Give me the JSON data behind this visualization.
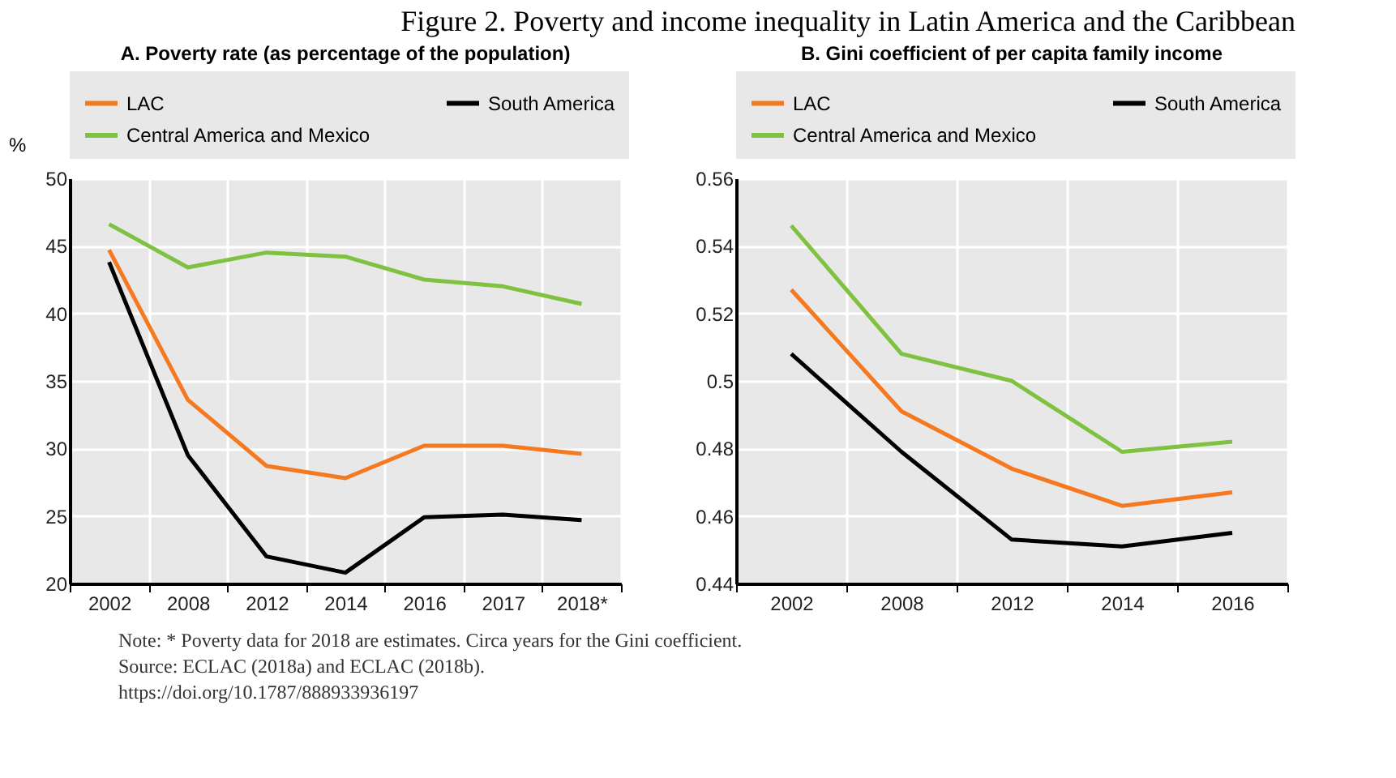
{
  "chart_data": [
    {
      "type": "line",
      "title": "A. Poverty rate  (as percentage of the population)",
      "ylabel": "%",
      "categories": [
        "2002",
        "2008",
        "2012",
        "2014",
        "2016",
        "2017",
        "2018*"
      ],
      "series": [
        {
          "name": "LAC",
          "color": "#f47920",
          "values": [
            44.7,
            33.6,
            28.7,
            27.8,
            30.2,
            30.2,
            29.6
          ]
        },
        {
          "name": "South America",
          "color": "#000000",
          "values": [
            43.8,
            29.5,
            22.0,
            20.8,
            24.9,
            25.1,
            24.7
          ]
        },
        {
          "name": "Central America and Mexico",
          "color": "#7fc241",
          "values": [
            46.6,
            43.4,
            44.5,
            44.2,
            42.5,
            42.0,
            40.7
          ]
        }
      ],
      "ylim": [
        20,
        50
      ],
      "yticks": [
        20,
        25,
        30,
        35,
        40,
        45,
        50
      ],
      "grid": true,
      "legend": "top",
      "line_style": "solid",
      "annotations": [
        "Figure 2. Poverty and income inequality in Latin America and the Caribbean",
        "Note: * Poverty data for 2018 are estimates. Circa years for the Gini coefficient.",
        "Source: ECLAC (2018a) and ECLAC (2018b).",
        "https://doi.org/10.1787/888933936197"
      ]
    },
    {
      "type": "line",
      "title": "B. Gini coefficient of per capita family income",
      "categories": [
        "2002",
        "2008",
        "2012",
        "2014",
        "2016"
      ],
      "series": [
        {
          "name": "LAC",
          "color": "#f47920",
          "values": [
            0.527,
            0.491,
            0.474,
            0.463,
            0.467
          ]
        },
        {
          "name": "South America",
          "color": "#000000",
          "values": [
            0.508,
            0.479,
            0.453,
            0.451,
            0.455
          ]
        },
        {
          "name": "Central America and Mexico",
          "color": "#7fc241",
          "values": [
            0.546,
            0.508,
            0.5,
            0.479,
            0.482
          ]
        }
      ],
      "ylim": [
        0.44,
        0.56
      ],
      "yticks": [
        0.44,
        0.46,
        0.48,
        0.5,
        0.52,
        0.54,
        0.56
      ],
      "grid": true,
      "legend": "top",
      "line_style": "solid"
    }
  ]
}
